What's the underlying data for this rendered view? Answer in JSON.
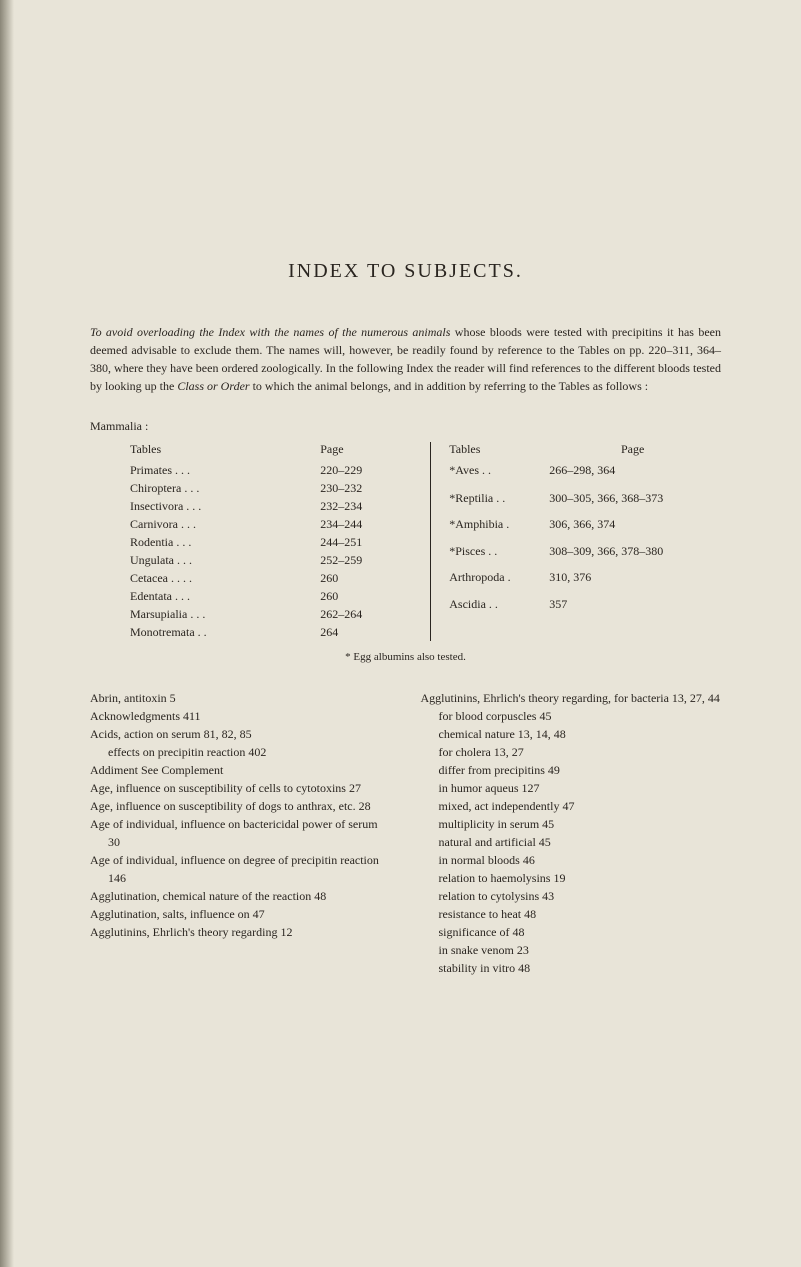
{
  "title": "INDEX TO SUBJECTS.",
  "intro_parts": {
    "p1a": "To avoid overloading the Index with the names of the numerous animals",
    "p1b": " whose bloods were tested with precipitins it has been deemed advisable to exclude them. The names will, however, be readily found by reference to the Tables on pp. 220–311, 364–380, where they have been ordered zoologically. In the following Index the reader will find references to the different bloods tested by looking up the ",
    "p1c": "Class or Order",
    "p1d": " to which the animal belongs, and in addition by referring to the Tables as follows :"
  },
  "mammalia_label": "Mammalia :",
  "left_header": {
    "c1": "Tables",
    "c2": "Page"
  },
  "left_rows": [
    {
      "c1": "Primates   .   .   .",
      "c2": "220–229"
    },
    {
      "c1": "Chiroptera  .   .   .",
      "c2": "230–232"
    },
    {
      "c1": "Insectivora  .   .   .",
      "c2": "232–234"
    },
    {
      "c1": "Carnivora   .   .   .",
      "c2": "234–244"
    },
    {
      "c1": "Rodentia   .   .   .",
      "c2": "244–251"
    },
    {
      "c1": "Ungulata   .   .   .",
      "c2": "252–259"
    },
    {
      "c1": "Cetacea .   .   .   .",
      "c2": "260"
    },
    {
      "c1": "Edentata   .   .   .",
      "c2": "260"
    },
    {
      "c1": "Marsupialia .   .   .",
      "c2": "262–264"
    },
    {
      "c1": "Monotremata   .   .",
      "c2": "264"
    }
  ],
  "right_header": {
    "c1": "Tables",
    "c2": "Page"
  },
  "right_rows": [
    {
      "c1": "*Aves   .   .",
      "c2": "266–298, 364"
    },
    {
      "c1": "*Reptilia .   .",
      "c2": "300–305, 366, 368–373"
    },
    {
      "c1": "*Amphibia   .",
      "c2": "306, 366, 374"
    },
    {
      "c1": "*Pisces   .   .",
      "c2": "308–309, 366, 378–380"
    },
    {
      "c1": "Arthropoda   .",
      "c2": "310, 376"
    },
    {
      "c1": "Ascidia   .   .",
      "c2": "357"
    }
  ],
  "footnote": "* Egg albumins also tested.",
  "col_left": [
    "Abrin, antitoxin   5",
    "Acknowledgments   411",
    "Acids, action on serum   81, 82, 85",
    "   effects on precipitin reaction   402",
    "Addiment   See Complement",
    "Age, influence on susceptibility of cells to cytotoxins   27",
    "Age, influence on susceptibility of dogs to anthrax, etc.   28",
    "Age of individual, influence on bactericidal power of serum   30",
    "Age of individual, influence on degree of precipitin reaction   146",
    "Agglutination, chemical nature of the reaction   48",
    "Agglutination, salts, influence on   47",
    "Agglutinins, Ehrlich's theory regarding   12"
  ],
  "col_right": [
    "Agglutinins, Ehrlich's theory regarding, for bacteria   13, 27, 44",
    "   for blood corpuscles   45",
    "   chemical nature   13, 14, 48",
    "   for cholera   13, 27",
    "   differ from precipitins   49",
    "   in humor aqueus   127",
    "   mixed, act independently   47",
    "   multiplicity in serum   45",
    "   natural and artificial   45",
    "   in normal bloods   46",
    "   relation to haemolysins   19",
    "   relation to cytolysins   43",
    "   resistance to heat   48",
    "   significance of   48",
    "   in snake venom   23",
    "   stability in vitro   48"
  ],
  "colors": {
    "background": "#e8e4d8",
    "text": "#2a2520"
  }
}
